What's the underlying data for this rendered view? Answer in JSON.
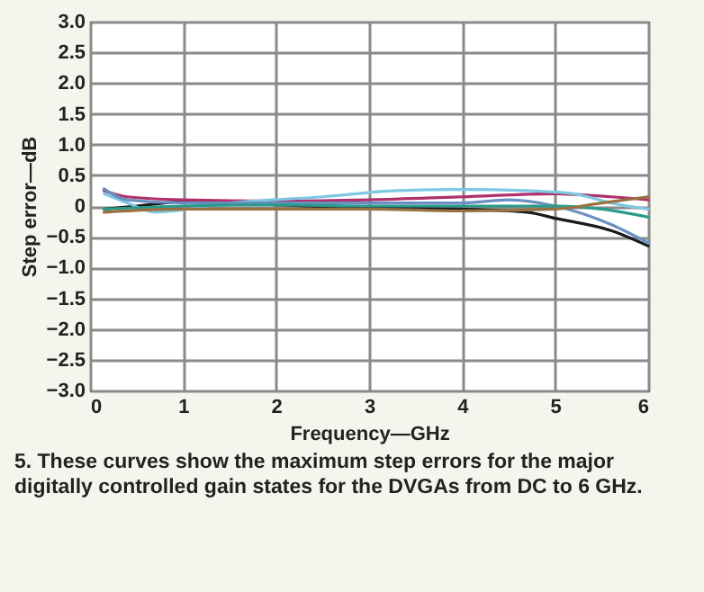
{
  "chart_data": {
    "type": "line",
    "xlabel": "Frequency—GHz",
    "ylabel": "Step error—dB",
    "annotations": [
      "5. These curves show the maximum step errors for the major digitally controlled gain states for the DVGAs from DC to 6 GHz."
    ],
    "xlim": [
      0,
      6
    ],
    "xticks": [
      0,
      1,
      2,
      3,
      4,
      5,
      6
    ],
    "ylim": [
      -3,
      3
    ],
    "yticks": [
      {
        "value": 3,
        "label": "3.0"
      },
      {
        "value": 2.5,
        "label": "2.5"
      },
      {
        "value": 2,
        "label": "2.0"
      },
      {
        "value": 1.5,
        "label": "1.5"
      },
      {
        "value": 1,
        "label": "1.0"
      },
      {
        "value": 0.5,
        "label": "0.5"
      },
      0,
      {
        "value": -0.5,
        "label": "−0.5"
      },
      {
        "value": -1,
        "label": "−1.0"
      },
      {
        "value": -1.5,
        "label": "−1.5"
      },
      {
        "value": -2,
        "label": "−2.0"
      },
      {
        "value": -2.5,
        "label": "−2.5"
      },
      {
        "value": -3,
        "label": "−3.0"
      }
    ],
    "grid": true,
    "legend": false,
    "marker": "none",
    "line_style": "solid",
    "series": [
      {
        "color": "#1a1a1a",
        "x": [
          0.15,
          0.5,
          1.1,
          2,
          3,
          4,
          4.7,
          5,
          5.6,
          6
        ],
        "values": [
          -0.05,
          0,
          0.08,
          0.02,
          -0.03,
          -0.05,
          -0.1,
          -0.2,
          -0.4,
          -0.65
        ]
      },
      {
        "color": "#b0306a",
        "x": [
          0.15,
          0.4,
          1,
          2,
          3,
          4,
          5,
          5.6,
          6
        ],
        "values": [
          0.25,
          0.15,
          0.1,
          0.08,
          0.1,
          0.15,
          0.2,
          0.15,
          0.1
        ]
      },
      {
        "color": "#7ec8e3",
        "x": [
          0.15,
          0.4,
          0.7,
          1.5,
          2.5,
          3.3,
          4,
          4.7,
          5.2,
          5.6,
          6
        ],
        "values": [
          0.2,
          0.05,
          -0.1,
          0.05,
          0.15,
          0.25,
          0.27,
          0.25,
          0.2,
          0.05,
          -0.05
        ]
      },
      {
        "color": "#6a8fc0",
        "x": [
          0.15,
          0.4,
          1,
          2,
          3,
          4,
          4.5,
          5,
          5.6,
          6
        ],
        "values": [
          0.28,
          0.1,
          0.05,
          0.05,
          0.05,
          0.05,
          0.1,
          0,
          -0.3,
          -0.6
        ]
      },
      {
        "color": "#2a9a8a",
        "x": [
          0.15,
          1,
          2,
          3,
          4,
          5,
          5.5,
          6
        ],
        "values": [
          -0.05,
          0,
          0.02,
          0,
          0,
          0,
          -0.05,
          -0.18
        ]
      },
      {
        "color": "#9a7040",
        "x": [
          0.15,
          1,
          2,
          3,
          4,
          5,
          5.5,
          6
        ],
        "values": [
          -0.1,
          -0.05,
          -0.05,
          -0.05,
          -0.08,
          -0.05,
          0.05,
          0.15
        ]
      }
    ]
  }
}
